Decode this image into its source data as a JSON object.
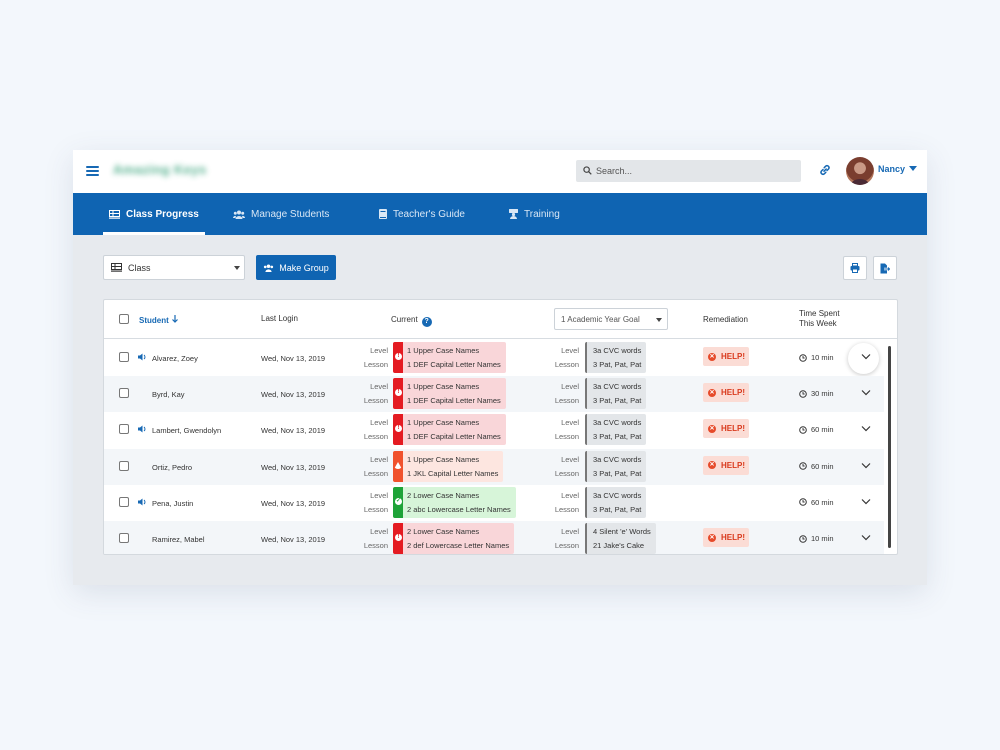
{
  "header": {
    "app_name": "Amazing Keys",
    "search_placeholder": "Search...",
    "user_name": "Nancy"
  },
  "nav": {
    "tabs": [
      {
        "label": "Class Progress",
        "active": true
      },
      {
        "label": "Manage Students",
        "active": false
      },
      {
        "label": "Teacher's Guide",
        "active": false
      },
      {
        "label": "Training",
        "active": false
      }
    ]
  },
  "toolbar": {
    "class_select_value": "Class",
    "make_group_label": "Make Group"
  },
  "table": {
    "headers": {
      "student": "Student",
      "last_login": "Last Login",
      "current": "Current",
      "goal_select": "1 Academic Year Goal",
      "remediation": "Remediation",
      "time_spent_line1": "Time Spent",
      "time_spent_line2": "This Week"
    },
    "level_label": "Level",
    "lesson_label": "Lesson",
    "help_label": "HELP!",
    "rows": [
      {
        "name": "Alvarez, Zoey",
        "login": "Wed, Nov 13, 2019",
        "cur_level": "1 Upper Case Names",
        "cur_lesson": "1 DEF Capital Letter Names",
        "status": "red",
        "goal_level": "3a CVC words",
        "goal_lesson": "3 Pat, Pat, Pat",
        "help": true,
        "time": "10 min"
      },
      {
        "name": "Byrd, Kay",
        "login": "Wed, Nov 13, 2019",
        "cur_level": "1 Upper Case Names",
        "cur_lesson": "1 DEF Capital Letter Names",
        "status": "red",
        "goal_level": "3a CVC words",
        "goal_lesson": "3 Pat, Pat, Pat",
        "help": true,
        "time": "30 min"
      },
      {
        "name": "Lambert, Gwendolyn",
        "login": "Wed, Nov 13, 2019",
        "cur_level": "1 Upper Case Names",
        "cur_lesson": "1 DEF Capital Letter Names",
        "status": "red",
        "goal_level": "3a CVC words",
        "goal_lesson": "3 Pat, Pat, Pat",
        "help": true,
        "time": "60 min"
      },
      {
        "name": "Ortiz, Pedro",
        "login": "Wed, Nov 13, 2019",
        "cur_level": "1 Upper Case Names",
        "cur_lesson": "1 JKL Capital Letter Names",
        "status": "orange",
        "goal_level": "3a CVC words",
        "goal_lesson": "3 Pat, Pat, Pat",
        "help": true,
        "time": "60 min"
      },
      {
        "name": "Pena, Justin",
        "login": "Wed, Nov 13, 2019",
        "cur_level": "2 Lower Case Names",
        "cur_lesson": "2 abc Lowercase Letter Names",
        "status": "green",
        "goal_level": "3a CVC words",
        "goal_lesson": "3 Pat, Pat, Pat",
        "help": false,
        "time": "60 min"
      },
      {
        "name": "Ramirez, Mabel",
        "login": "Wed, Nov 13, 2019",
        "cur_level": "2 Lower Case Names",
        "cur_lesson": "2 def Lowercase Letter Names",
        "status": "red",
        "goal_level": "4 Silent 'e' Words",
        "goal_lesson": "21 Jake's Cake",
        "help": true,
        "time": "10 min"
      }
    ]
  },
  "colors": {
    "brand_blue": "#0f64b2",
    "status_red": "#e41b22",
    "status_orange": "#f0522d",
    "status_green": "#1ea338"
  }
}
